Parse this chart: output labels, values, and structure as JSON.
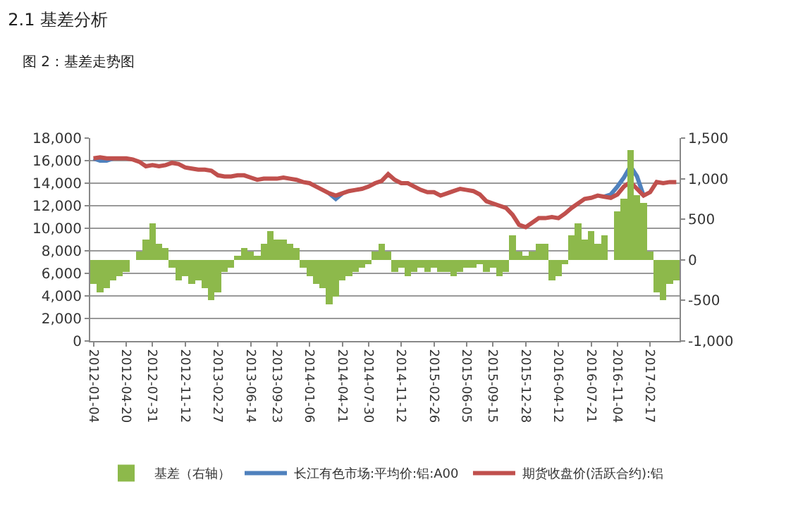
{
  "chart_data": {
    "type": "line",
    "title": "2.1 基差分析",
    "subtitle": "图 2：基差走势图",
    "categories": [
      "2012-01-04",
      null,
      null,
      null,
      null,
      "2012-04-20",
      null,
      null,
      null,
      "2012-07-31",
      null,
      null,
      null,
      null,
      "2012-11-12",
      null,
      null,
      null,
      null,
      "2013-02-27",
      null,
      null,
      null,
      null,
      "2013-06-14",
      null,
      null,
      null,
      "2013-09-23",
      null,
      null,
      null,
      null,
      "2014-01-06",
      null,
      null,
      null,
      null,
      "2014-04-21",
      null,
      null,
      null,
      "2014-07-30",
      null,
      null,
      null,
      null,
      "2014-11-12",
      null,
      null,
      null,
      null,
      "2015-02-26",
      null,
      null,
      null,
      null,
      "2015-06-05",
      null,
      null,
      null,
      "2015-09-15",
      null,
      null,
      null,
      null,
      "2015-12-28",
      null,
      null,
      null,
      null,
      "2016-04-12",
      null,
      null,
      null,
      null,
      "2016-07-21",
      null,
      null,
      null,
      "2016-11-04",
      null,
      null,
      null,
      null,
      "2017-02-17",
      null,
      null,
      null,
      null
    ],
    "series": [
      {
        "name": "基差（右轴）",
        "type": "bar",
        "axis": "y2",
        "color": "#8db94b",
        "values": [
          -300,
          -400,
          -350,
          -250,
          -200,
          -150,
          0,
          100,
          250,
          450,
          200,
          150,
          -100,
          -250,
          -200,
          -300,
          -250,
          -350,
          -500,
          -400,
          -150,
          -100,
          50,
          150,
          100,
          50,
          200,
          350,
          250,
          250,
          200,
          150,
          -100,
          -200,
          -300,
          -350,
          -550,
          -450,
          -250,
          -200,
          -150,
          -100,
          -50,
          100,
          200,
          100,
          -150,
          -100,
          -200,
          -150,
          -100,
          -150,
          -100,
          -150,
          -150,
          -200,
          -150,
          -100,
          -100,
          -50,
          -150,
          -100,
          -200,
          -150,
          300,
          100,
          50,
          100,
          200,
          200,
          -250,
          -200,
          -50,
          300,
          450,
          250,
          350,
          200,
          300,
          0,
          600,
          750,
          1350,
          800,
          700,
          100,
          -400,
          -500,
          -300,
          -250
        ]
      },
      {
        "name": "长江有色市场:平均价:铝:A00",
        "color": "#4f81bd",
        "values": [
          16200,
          16000,
          16000,
          16200,
          null,
          null,
          null,
          null,
          null,
          null,
          null,
          null,
          null,
          null,
          null,
          null,
          null,
          null,
          null,
          null,
          null,
          null,
          null,
          null,
          null,
          null,
          null,
          null,
          null,
          null,
          null,
          null,
          null,
          null,
          null,
          null,
          13100,
          12600,
          13100,
          null,
          null,
          null,
          null,
          null,
          null,
          null,
          null,
          null,
          null,
          null,
          null,
          null,
          null,
          null,
          null,
          null,
          null,
          null,
          null,
          null,
          null,
          null,
          null,
          null,
          null,
          null,
          null,
          null,
          null,
          null,
          null,
          null,
          null,
          null,
          null,
          null,
          null,
          null,
          12800,
          13000,
          13700,
          14500,
          15500,
          14600,
          12900,
          null,
          null,
          null,
          null,
          null
        ]
      },
      {
        "name": "期货收盘价(活跃合约):铝",
        "color": "#c0504d",
        "values": [
          16200,
          16300,
          16200,
          16200,
          16200,
          16200,
          16100,
          15900,
          15500,
          15600,
          15500,
          15600,
          15800,
          15700,
          15400,
          15300,
          15200,
          15200,
          15100,
          14700,
          14600,
          14600,
          14700,
          14700,
          14500,
          14300,
          14400,
          14400,
          14400,
          14500,
          14400,
          14300,
          14100,
          14000,
          13700,
          13400,
          13100,
          12900,
          13100,
          13300,
          13400,
          13500,
          13700,
          14000,
          14200,
          14800,
          14300,
          14000,
          14000,
          13700,
          13400,
          13200,
          13200,
          12900,
          13100,
          13300,
          13500,
          13400,
          13300,
          13000,
          12400,
          12200,
          12000,
          11800,
          11200,
          10300,
          10100,
          10500,
          10900,
          10900,
          11000,
          10900,
          11300,
          11800,
          12200,
          12600,
          12700,
          12900,
          12800,
          12700,
          13000,
          13700,
          14100,
          13500,
          12900,
          13200,
          14100,
          14000,
          14100,
          14100
        ]
      }
    ],
    "ylim": [
      0,
      18000
    ],
    "yticks": [
      0,
      {
        "value": 2000,
        "label": "2,000"
      },
      {
        "value": 4000,
        "label": "4,000"
      },
      {
        "value": 6000,
        "label": "6,000"
      },
      {
        "value": 8000,
        "label": "8,000"
      },
      {
        "value": 10000,
        "label": "10,000"
      },
      {
        "value": 12000,
        "label": "12,000"
      },
      {
        "value": 14000,
        "label": "14,000"
      },
      {
        "value": 16000,
        "label": "16,000"
      },
      {
        "value": 18000,
        "label": "18,000"
      }
    ],
    "y2lim": [
      -1000,
      1500
    ],
    "y2ticks": [
      {
        "value": -1000,
        "label": "-1,000"
      },
      -500,
      0,
      500,
      {
        "value": 1000,
        "label": "1,000"
      },
      {
        "value": 1500,
        "label": "1,500"
      }
    ],
    "grid": "y",
    "legend": "bottom"
  }
}
